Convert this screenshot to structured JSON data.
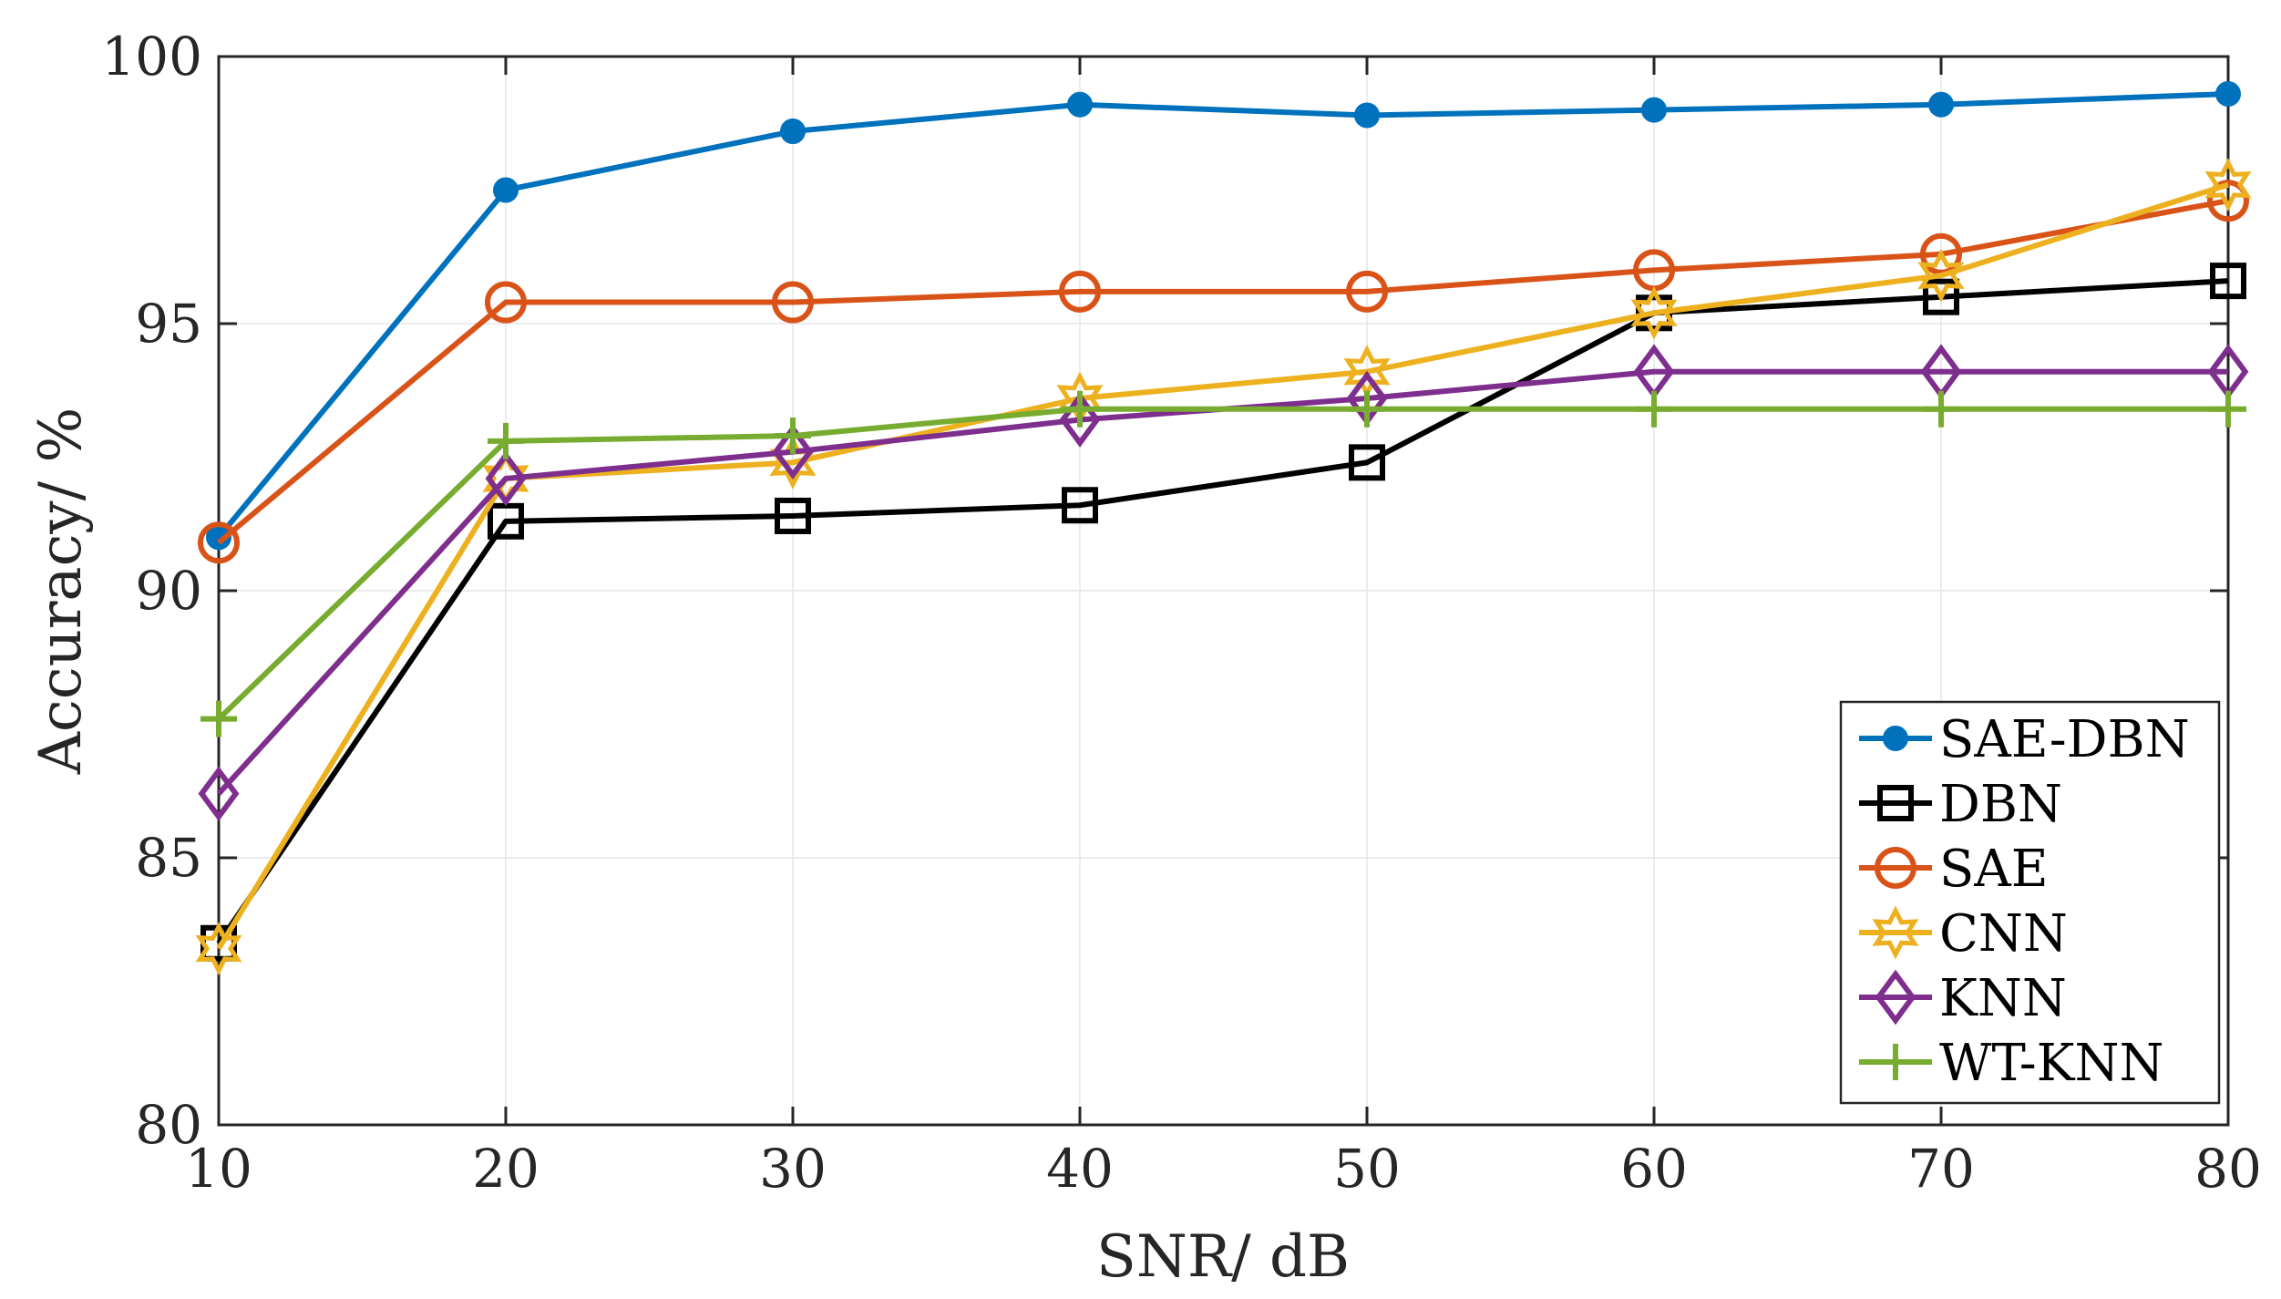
{
  "chart_data": {
    "type": "line",
    "title": "",
    "xlabel": "SNR/ dB",
    "ylabel": "Accuracy/ %",
    "xlim": [
      10,
      80
    ],
    "ylim": [
      80,
      100
    ],
    "xticks": [
      10,
      20,
      30,
      40,
      50,
      60,
      70,
      80
    ],
    "yticks": [
      80,
      85,
      90,
      95,
      100
    ],
    "grid": true,
    "legend_position": "bottom-right",
    "x": [
      10,
      20,
      30,
      40,
      50,
      60,
      70,
      80
    ],
    "series": [
      {
        "name": "SAE-DBN",
        "marker": "circle-filled",
        "color": "#0072BD",
        "values": [
          91.0,
          97.5,
          98.6,
          99.1,
          98.9,
          99.0,
          99.1,
          99.3
        ]
      },
      {
        "name": "DBN",
        "marker": "square",
        "color": "#000000",
        "values": [
          83.4,
          91.3,
          91.4,
          91.6,
          92.4,
          95.2,
          95.5,
          95.8
        ]
      },
      {
        "name": "SAE",
        "marker": "circle",
        "color": "#D95319",
        "values": [
          90.9,
          95.4,
          95.4,
          95.6,
          95.6,
          96.0,
          96.3,
          97.3
        ]
      },
      {
        "name": "CNN",
        "marker": "hexagram",
        "color": "#EDB120",
        "values": [
          83.3,
          92.1,
          92.4,
          93.6,
          94.1,
          95.2,
          95.9,
          97.6
        ]
      },
      {
        "name": "KNN",
        "marker": "diamond",
        "color": "#7E2F8E",
        "values": [
          86.2,
          92.1,
          92.6,
          93.2,
          93.6,
          94.1,
          94.1,
          94.1
        ]
      },
      {
        "name": "WT-KNN",
        "marker": "plus",
        "color": "#77AC30",
        "values": [
          87.6,
          92.8,
          92.9,
          93.4,
          93.4,
          93.4,
          93.4,
          93.4
        ]
      }
    ]
  }
}
